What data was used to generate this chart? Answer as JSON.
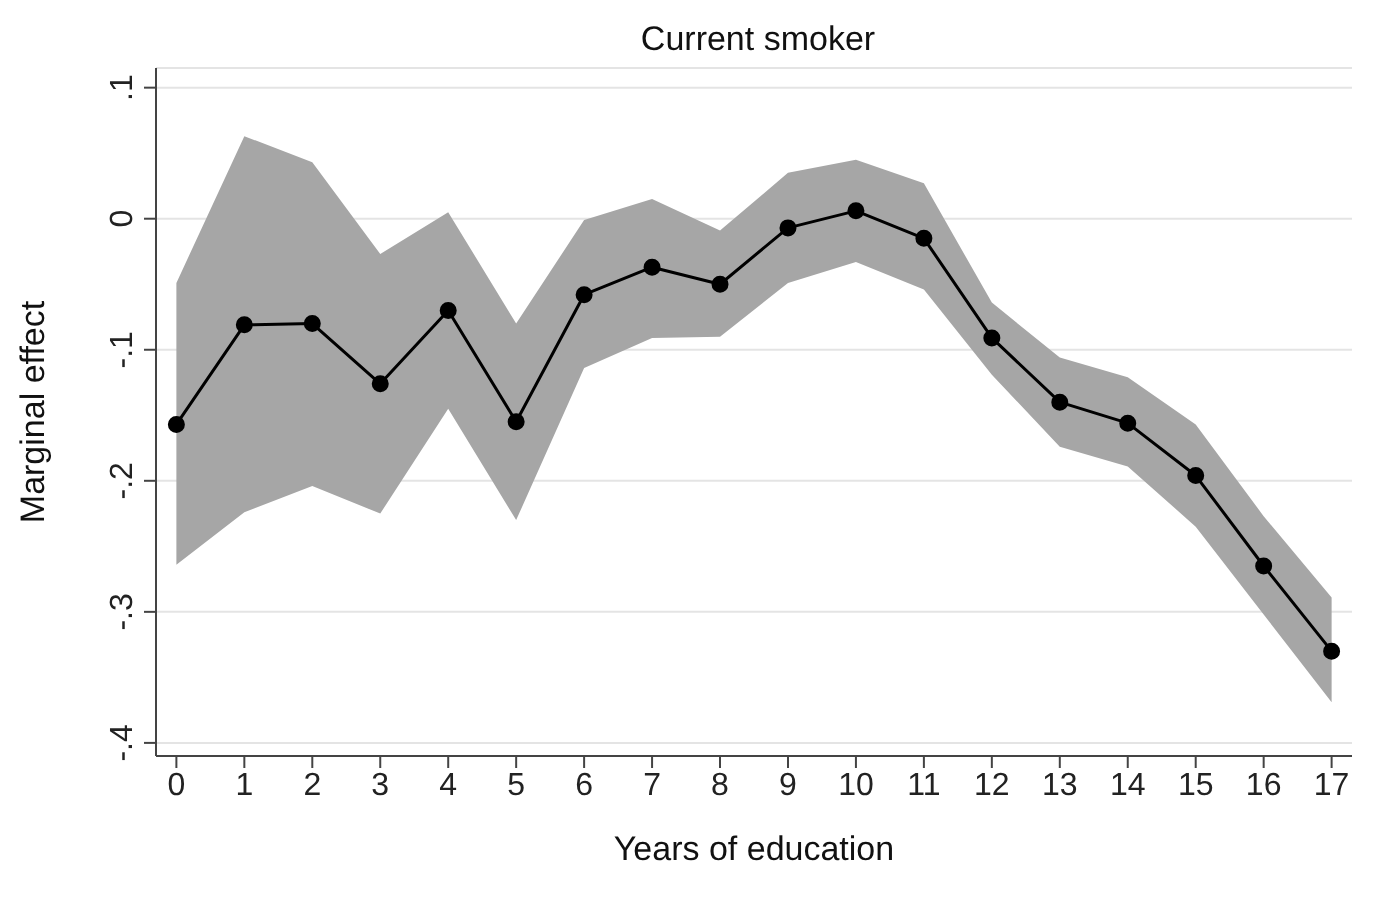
{
  "chart_data": {
    "type": "line",
    "title": "Current smoker",
    "xlabel": "Years of education",
    "ylabel": "Marginal effect",
    "x": [
      0,
      1,
      2,
      3,
      4,
      5,
      6,
      7,
      8,
      9,
      10,
      11,
      12,
      13,
      14,
      15,
      16,
      17
    ],
    "series": [
      {
        "color": "#000000",
        "values": [
          -0.157,
          -0.081,
          -0.08,
          -0.126,
          -0.07,
          -0.155,
          -0.058,
          -0.037,
          -0.05,
          -0.007,
          0.006,
          -0.015,
          -0.091,
          -0.14,
          -0.156,
          -0.196,
          -0.265,
          -0.33
        ],
        "lower": [
          -0.264,
          -0.224,
          -0.204,
          -0.225,
          -0.145,
          -0.23,
          -0.114,
          -0.091,
          -0.09,
          -0.049,
          -0.033,
          -0.054,
          -0.119,
          -0.174,
          -0.189,
          -0.235,
          -0.302,
          -0.369
        ],
        "upper": [
          -0.049,
          0.063,
          0.043,
          -0.027,
          0.005,
          -0.08,
          -0.001,
          0.015,
          -0.009,
          0.035,
          0.045,
          0.027,
          -0.064,
          -0.106,
          -0.121,
          -0.157,
          -0.227,
          -0.289
        ]
      }
    ],
    "xlim": [
      -0.3,
      17.3
    ],
    "xticks": [
      0,
      1,
      2,
      3,
      4,
      5,
      6,
      7,
      8,
      9,
      10,
      11,
      12,
      13,
      14,
      15,
      16,
      17
    ],
    "ylim": [
      -0.41,
      0.115
    ],
    "yticks": [
      {
        "value": 0.1,
        "label": ".1"
      },
      {
        "value": 0,
        "label": "0"
      },
      {
        "value": -0.1,
        "label": "-.1"
      },
      {
        "value": -0.2,
        "label": "-.2"
      },
      {
        "value": -0.3,
        "label": "-.3"
      },
      {
        "value": -0.4,
        "label": "-.4"
      }
    ],
    "grid": "y",
    "marker": "circle",
    "line_style": "solid"
  }
}
